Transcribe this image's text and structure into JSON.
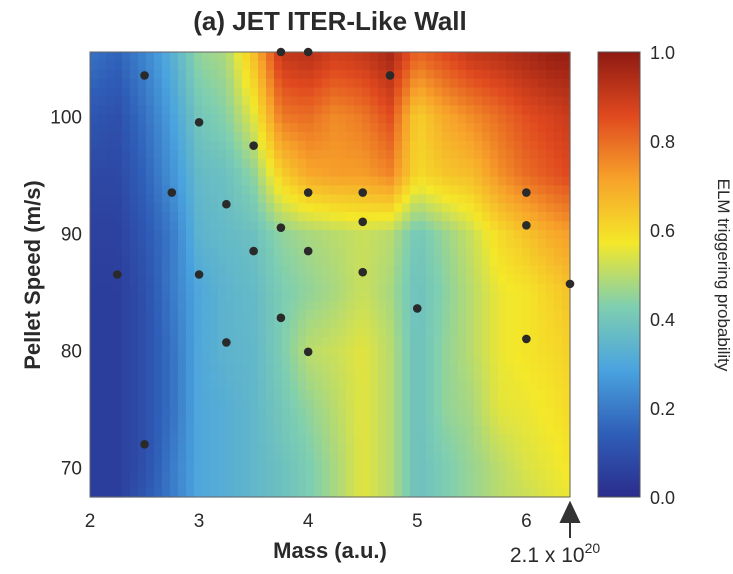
{
  "chart_data": {
    "type": "heatmap",
    "title": "(a) JET ITER-Like Wall",
    "xlabel": "Mass (a.u.)",
    "ylabel": "Pellet Speed (m/s)",
    "xlim": [
      2,
      6.4
    ],
    "ylim": [
      67.5,
      105.5
    ],
    "xticks": [
      "2",
      "3",
      "4",
      "5",
      "6"
    ],
    "yticks": [
      "70",
      "80",
      "90",
      "100"
    ],
    "colorbar": {
      "label": "ELM triggering probability",
      "ticks": [
        "0.0",
        "0.2",
        "0.4",
        "0.6",
        "0.8",
        "1.0"
      ],
      "range": [
        0,
        1
      ],
      "colors": [
        "#2b2c8c",
        "#2f5fb8",
        "#4aa3df",
        "#7fcfb0",
        "#f4e829",
        "#f7a22a",
        "#e0491f",
        "#8e1a12"
      ]
    },
    "annotation": {
      "base": "2.1 x 10",
      "exponent": "20",
      "arrow_x": 6.4
    },
    "grid": false,
    "legend": "none",
    "z_columns_x": [
      2.0,
      2.25,
      2.5,
      2.75,
      3.0,
      3.25,
      3.5,
      3.75,
      4.0,
      4.25,
      4.5,
      4.75,
      5.0,
      5.25,
      5.5,
      5.75,
      6.0,
      6.25,
      6.4
    ],
    "z_rows_y": [
      105,
      100,
      95,
      90,
      85,
      80,
      75,
      70,
      67.5
    ],
    "z": [
      [
        0.18,
        0.15,
        0.22,
        0.32,
        0.45,
        0.48,
        0.65,
        0.9,
        0.92,
        0.88,
        0.9,
        0.95,
        0.8,
        0.85,
        0.9,
        0.92,
        0.95,
        0.98,
        0.98
      ],
      [
        0.12,
        0.1,
        0.18,
        0.28,
        0.4,
        0.44,
        0.55,
        0.78,
        0.8,
        0.75,
        0.78,
        0.85,
        0.62,
        0.7,
        0.75,
        0.8,
        0.85,
        0.88,
        0.9
      ],
      [
        0.08,
        0.08,
        0.15,
        0.25,
        0.36,
        0.38,
        0.45,
        0.62,
        0.7,
        0.72,
        0.72,
        0.76,
        0.6,
        0.64,
        0.66,
        0.74,
        0.8,
        0.84,
        0.86
      ],
      [
        0.06,
        0.06,
        0.12,
        0.2,
        0.34,
        0.36,
        0.38,
        0.45,
        0.48,
        0.5,
        0.52,
        0.5,
        0.4,
        0.46,
        0.52,
        0.6,
        0.65,
        0.7,
        0.72
      ],
      [
        0.05,
        0.05,
        0.1,
        0.2,
        0.3,
        0.34,
        0.36,
        0.42,
        0.45,
        0.48,
        0.52,
        0.48,
        0.38,
        0.44,
        0.5,
        0.56,
        0.58,
        0.62,
        0.65
      ],
      [
        0.05,
        0.05,
        0.1,
        0.18,
        0.3,
        0.34,
        0.35,
        0.42,
        0.5,
        0.52,
        0.55,
        0.5,
        0.38,
        0.45,
        0.5,
        0.56,
        0.58,
        0.6,
        0.62
      ],
      [
        0.05,
        0.05,
        0.1,
        0.18,
        0.3,
        0.32,
        0.35,
        0.4,
        0.45,
        0.5,
        0.55,
        0.5,
        0.38,
        0.45,
        0.48,
        0.55,
        0.56,
        0.58,
        0.6
      ],
      [
        0.05,
        0.05,
        0.1,
        0.2,
        0.3,
        0.32,
        0.35,
        0.38,
        0.42,
        0.48,
        0.55,
        0.5,
        0.38,
        0.42,
        0.46,
        0.5,
        0.54,
        0.56,
        0.58
      ],
      [
        0.05,
        0.05,
        0.12,
        0.2,
        0.3,
        0.32,
        0.35,
        0.38,
        0.42,
        0.48,
        0.55,
        0.5,
        0.38,
        0.42,
        0.46,
        0.5,
        0.52,
        0.55,
        0.56
      ]
    ],
    "points": [
      {
        "x": 2.5,
        "y": 103.5
      },
      {
        "x": 3.0,
        "y": 99.5
      },
      {
        "x": 3.5,
        "y": 97.5
      },
      {
        "x": 2.75,
        "y": 93.5
      },
      {
        "x": 3.25,
        "y": 92.5
      },
      {
        "x": 3.75,
        "y": 105.5
      },
      {
        "x": 4.0,
        "y": 105.5
      },
      {
        "x": 4.75,
        "y": 103.5
      },
      {
        "x": 4.0,
        "y": 93.5
      },
      {
        "x": 4.5,
        "y": 93.5
      },
      {
        "x": 4.5,
        "y": 91.0
      },
      {
        "x": 3.75,
        "y": 90.5
      },
      {
        "x": 3.5,
        "y": 88.5
      },
      {
        "x": 4.0,
        "y": 88.5
      },
      {
        "x": 2.25,
        "y": 86.5
      },
      {
        "x": 3.0,
        "y": 86.5
      },
      {
        "x": 4.5,
        "y": 86.7
      },
      {
        "x": 3.75,
        "y": 82.8
      },
      {
        "x": 5.0,
        "y": 83.6
      },
      {
        "x": 3.25,
        "y": 80.7
      },
      {
        "x": 4.0,
        "y": 79.9
      },
      {
        "x": 6.0,
        "y": 93.5
      },
      {
        "x": 6.0,
        "y": 90.7
      },
      {
        "x": 6.4,
        "y": 85.7
      },
      {
        "x": 6.0,
        "y": 81.0
      },
      {
        "x": 2.5,
        "y": 72.0
      }
    ]
  }
}
